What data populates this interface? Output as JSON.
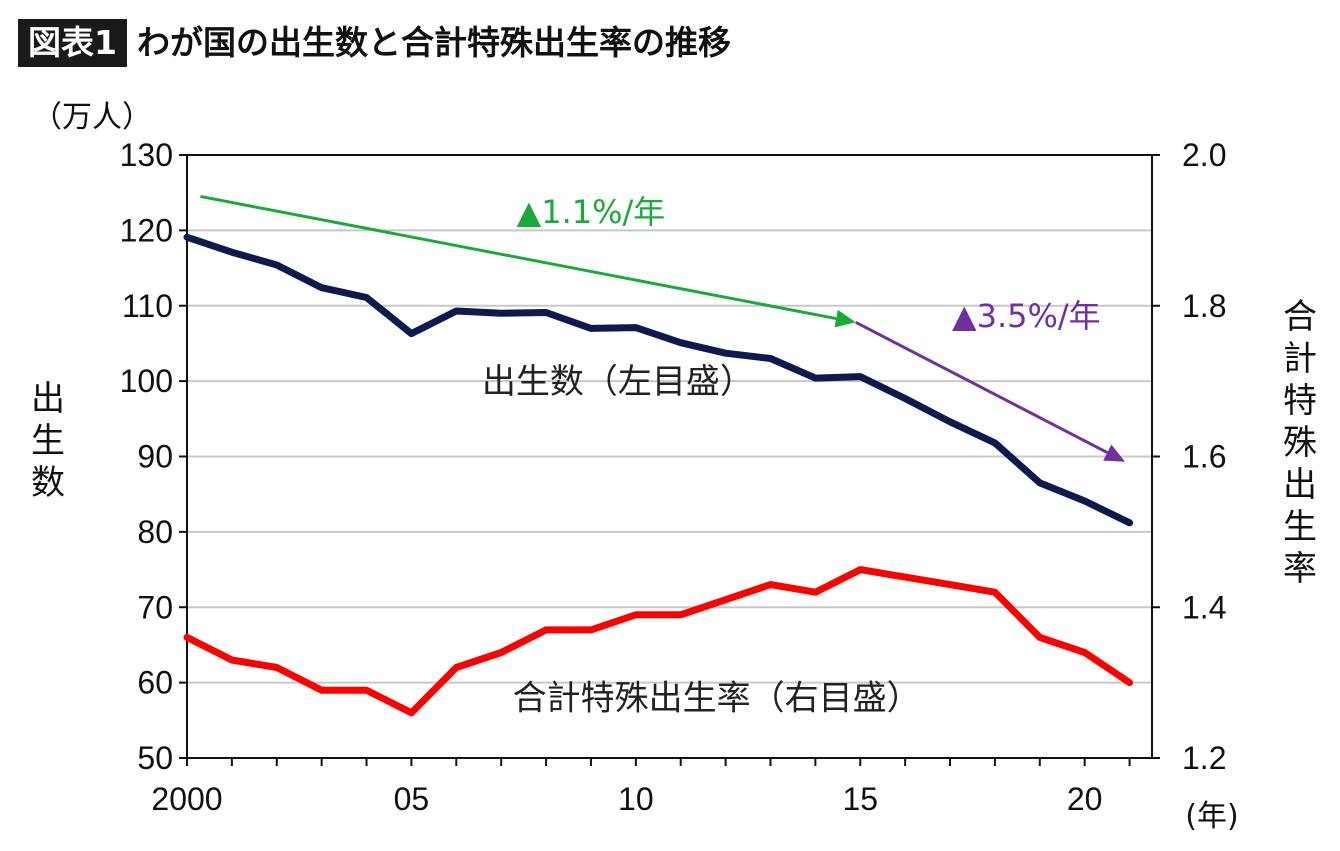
{
  "title": {
    "badge": "図表1",
    "text": "わが国の出生数と合計特殊出生率の推移"
  },
  "chart_data": {
    "type": "line",
    "x": [
      2000,
      2001,
      2002,
      2003,
      2004,
      2005,
      2006,
      2007,
      2008,
      2009,
      2010,
      2011,
      2012,
      2013,
      2014,
      2015,
      2016,
      2017,
      2018,
      2019,
      2020,
      2021
    ],
    "x_tick_labels": [
      {
        "x": 2000,
        "label": "2000"
      },
      {
        "x": 2005,
        "label": "05"
      },
      {
        "x": 2010,
        "label": "10"
      },
      {
        "x": 2015,
        "label": "15"
      },
      {
        "x": 2020,
        "label": "20"
      }
    ],
    "x_unit": "(年)",
    "xlim": [
      2000,
      2021.5
    ],
    "left_axis": {
      "label": "出生数",
      "unit": "（万人）",
      "ylim": [
        50,
        130
      ],
      "ticks": [
        50,
        60,
        70,
        80,
        90,
        100,
        110,
        120,
        130
      ]
    },
    "right_axis": {
      "label": "合計特殊出生率",
      "ylim": [
        1.2,
        2.0
      ],
      "ticks": [
        "1.2",
        "1.4",
        "1.6",
        "1.8",
        "2.0"
      ]
    },
    "grid": true,
    "series": [
      {
        "name": "出生数（左目盛）",
        "axis": "left",
        "color": "#0d1a4d",
        "values": [
          119.1,
          117.1,
          115.4,
          112.4,
          111.1,
          106.3,
          109.3,
          109.0,
          109.1,
          107.0,
          107.1,
          105.1,
          103.7,
          103.0,
          100.4,
          100.6,
          97.7,
          94.6,
          91.8,
          86.5,
          84.1,
          81.2
        ]
      },
      {
        "name": "合計特殊出生率（右目盛）",
        "axis": "right",
        "color": "#ff0000",
        "values": [
          1.36,
          1.33,
          1.32,
          1.29,
          1.29,
          1.26,
          1.32,
          1.34,
          1.37,
          1.37,
          1.39,
          1.39,
          1.41,
          1.43,
          1.42,
          1.45,
          1.44,
          1.43,
          1.42,
          1.36,
          1.34,
          1.3
        ]
      }
    ],
    "series_labels": [
      {
        "text": "出生数（左目盛）",
        "x": 2009.6,
        "y": 100
      },
      {
        "text": "合計特殊出生率（右目盛）",
        "x": 2011.8,
        "y": 58
      }
    ],
    "trend_annotations": [
      {
        "label": "▲1.1%/年",
        "color": "#1aaa3c",
        "from": [
          2000.3,
          124.5
        ],
        "to": [
          2014.9,
          107.8
        ],
        "label_at": [
          2009.0,
          121.0
        ]
      },
      {
        "label": "▲3.5%/年",
        "color": "#7030a0",
        "from": [
          2014.9,
          107.8
        ],
        "to": [
          2020.9,
          89.3
        ],
        "label_at": [
          2018.7,
          107.2
        ]
      }
    ]
  }
}
